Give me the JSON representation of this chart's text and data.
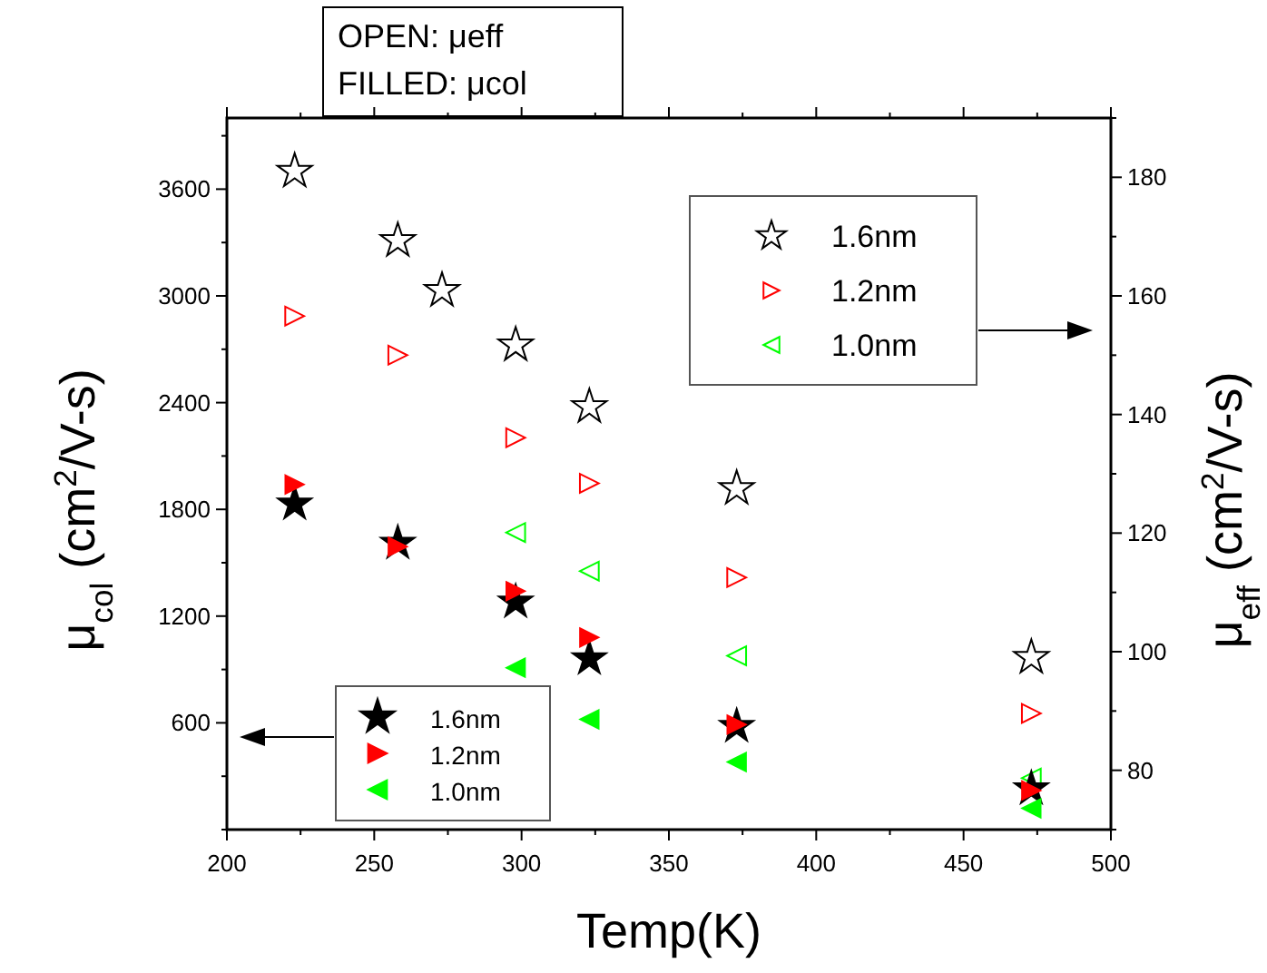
{
  "chart_data": {
    "type": "scatter",
    "xlabel": "Temp(K)",
    "ylabel": "μ$_{col}$ (cm$^{2}$/V-s)",
    "y2label": "μ$_{eff}$ (cm$^{2}$/V-s)",
    "xlim": [
      200,
      500
    ],
    "xticks": [
      200,
      250,
      300,
      350,
      400,
      450,
      500
    ],
    "ylim": [
      0,
      4000
    ],
    "yticks": [
      600,
      1200,
      1800,
      2400,
      3000,
      3600
    ],
    "y2lim": [
      70,
      190
    ],
    "y2ticks": [
      80,
      100,
      120,
      140,
      160,
      180
    ],
    "legend": "bottom left",
    "grid": false,
    "annotations": [
      "OPEN: μeff",
      "FILLED: μcol"
    ],
    "series": [
      {
        "name": "1.6nm",
        "color": "#000000",
        "marker": "star",
        "axis": "y2",
        "x": [
          223,
          258,
          273,
          298,
          323,
          373,
          473
        ],
        "values": [
          181.0,
          169.3,
          160.9,
          151.7,
          141.3,
          127.5,
          99.0
        ]
      },
      {
        "name": "1.2nm",
        "color": "#ff0000",
        "marker": "triangle",
        "axis": "y2",
        "x": [
          223,
          258,
          298,
          323,
          373,
          473
        ],
        "values": [
          156.6,
          150.0,
          136.1,
          128.4,
          112.5,
          89.6
        ]
      },
      {
        "name": "1.0nm",
        "color": "#00ff00",
        "marker": "triangle",
        "axis": "y2",
        "x": [
          298,
          323,
          373,
          473
        ],
        "values": [
          120.1,
          113.6,
          99.3,
          78.7
        ]
      },
      {
        "name": "1.6nm",
        "color": "#000000",
        "marker": "star",
        "axis": "y",
        "x": [
          223,
          258,
          298,
          323,
          373,
          473
        ],
        "values": [
          1830,
          1610,
          1280,
          960,
          580,
          230
        ]
      },
      {
        "name": "1.2nm",
        "color": "#ff0000",
        "marker": "triangle",
        "axis": "y",
        "x": [
          223,
          258,
          298,
          323,
          373,
          473
        ],
        "values": [
          1940,
          1590,
          1340,
          1080,
          590,
          220
        ]
      },
      {
        "name": "1.0nm",
        "color": "#00ff00",
        "marker": "triangle",
        "axis": "y",
        "x": [
          298,
          323,
          373,
          473
        ],
        "values": [
          910,
          620,
          380,
          120
        ]
      }
    ]
  }
}
